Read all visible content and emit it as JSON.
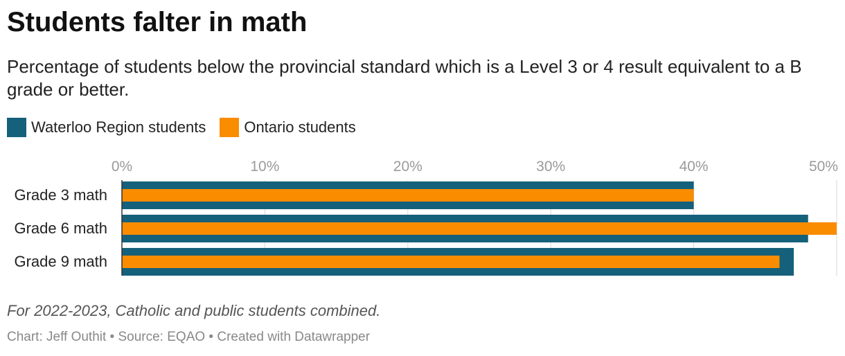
{
  "header": {
    "title": "Students falter in math",
    "subtitle": "Percentage of students below the provincial standard which is a Level 3 or 4 result equivalent to a B grade or better."
  },
  "footer": {
    "note": "For 2022-2023, Catholic and public students combined.",
    "credit": "Chart: Jeff Outhit • Source: EQAO • Created with Datawrapper"
  },
  "colors": {
    "waterloo": "#15607a",
    "ontario": "#fa8c00",
    "tick_text": "#9a9a9a",
    "gridline": "#d9d9d9"
  },
  "chart_data": {
    "type": "bar",
    "orientation": "horizontal",
    "categories": [
      "Grade 3 math",
      "Grade 6 math",
      "Grade 9 math"
    ],
    "series": [
      {
        "name": "Waterloo Region students",
        "values": [
          40,
          48,
          47
        ]
      },
      {
        "name": "Ontario students",
        "values": [
          40,
          50,
          46
        ]
      }
    ],
    "xlim": [
      0,
      50
    ],
    "xticks": [
      0,
      10,
      20,
      30,
      40,
      50
    ],
    "xtick_labels": [
      "0%",
      "10%",
      "20%",
      "30%",
      "40%",
      "50%"
    ],
    "grid": true,
    "legend_position": "top-left"
  }
}
